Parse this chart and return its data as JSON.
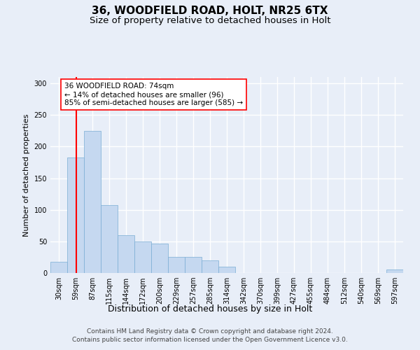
{
  "title1": "36, WOODFIELD ROAD, HOLT, NR25 6TX",
  "title2": "Size of property relative to detached houses in Holt",
  "xlabel": "Distribution of detached houses by size in Holt",
  "ylabel": "Number of detached properties",
  "bar_labels": [
    "30sqm",
    "59sqm",
    "87sqm",
    "115sqm",
    "144sqm",
    "172sqm",
    "200sqm",
    "229sqm",
    "257sqm",
    "285sqm",
    "314sqm",
    "342sqm",
    "370sqm",
    "399sqm",
    "427sqm",
    "455sqm",
    "484sqm",
    "512sqm",
    "540sqm",
    "569sqm",
    "597sqm"
  ],
  "bar_values": [
    18,
    183,
    225,
    107,
    60,
    50,
    47,
    25,
    25,
    20,
    10,
    0,
    0,
    0,
    0,
    0,
    0,
    0,
    0,
    0,
    5
  ],
  "bar_color": "#c5d8f0",
  "bar_edge_color": "#7aadd4",
  "vline_color": "red",
  "annotation_text": "36 WOODFIELD ROAD: 74sqm\n← 14% of detached houses are smaller (96)\n85% of semi-detached houses are larger (585) →",
  "annotation_box_color": "white",
  "annotation_box_edge": "red",
  "ylim": [
    0,
    310
  ],
  "yticks": [
    0,
    50,
    100,
    150,
    200,
    250,
    300
  ],
  "footer1": "Contains HM Land Registry data © Crown copyright and database right 2024.",
  "footer2": "Contains public sector information licensed under the Open Government Licence v3.0.",
  "background_color": "#e8eef8",
  "plot_bg_color": "#e8eef8",
  "grid_color": "white",
  "title1_fontsize": 11,
  "title2_fontsize": 9.5,
  "xlabel_fontsize": 9,
  "ylabel_fontsize": 8,
  "tick_fontsize": 7,
  "annotation_fontsize": 7.5,
  "footer_fontsize": 6.5
}
